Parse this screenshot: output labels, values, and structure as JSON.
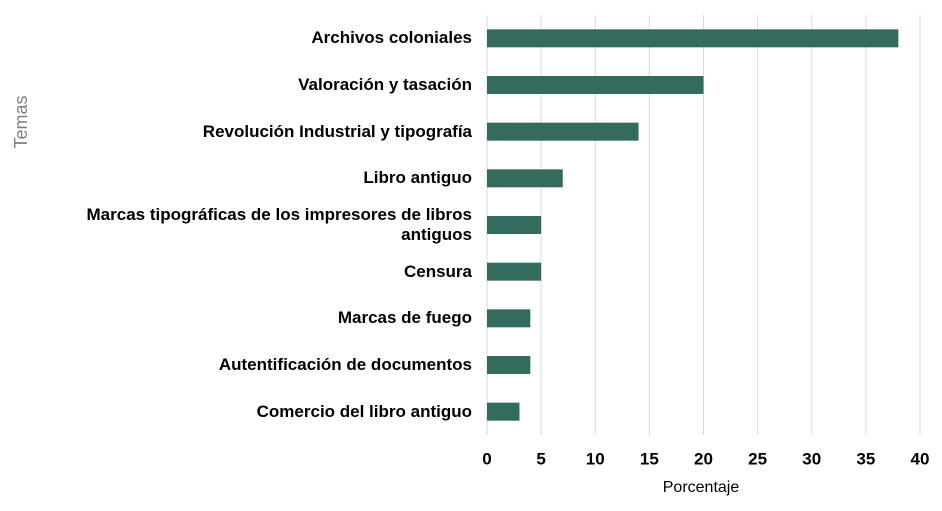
{
  "chart_data": {
    "type": "barh",
    "categories": [
      "Archivos coloniales",
      "Valoración y tasación",
      "Revolución Industrial y tipografía",
      "Libro antiguo",
      "Marcas tipográficas de los impresores de libros antiguos",
      "Censura",
      "Marcas de fuego",
      "Autentificación de documentos",
      "Comercio del libro antiguo"
    ],
    "values": [
      38,
      20,
      14,
      7,
      5,
      5,
      4,
      4,
      3
    ],
    "color": "#336b5c",
    "xlim": [
      0,
      40
    ],
    "xticks": [
      0,
      5,
      10,
      15,
      20,
      25,
      30,
      35,
      40
    ],
    "grid": true,
    "xlabel": "Porcentaje",
    "ylabel": "Temas"
  }
}
